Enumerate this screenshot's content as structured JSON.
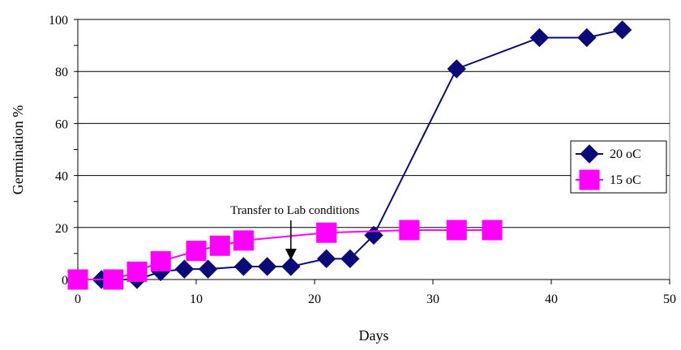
{
  "chart_data": {
    "type": "line",
    "title": "",
    "xlabel": "Days",
    "ylabel": "Germination %",
    "xlim": [
      0,
      50
    ],
    "ylim": [
      0,
      100
    ],
    "x_ticks": [
      0,
      10,
      20,
      30,
      40,
      50
    ],
    "y_ticks": [
      0,
      20,
      40,
      60,
      80,
      100
    ],
    "grid": "horizontal",
    "legend_position": "right",
    "series": [
      {
        "name": "20 oC",
        "color": "#0A0A78",
        "marker": "diamond",
        "points": [
          [
            2,
            0
          ],
          [
            5,
            0
          ],
          [
            7,
            3
          ],
          [
            9,
            4
          ],
          [
            11,
            4
          ],
          [
            14,
            5
          ],
          [
            16,
            5
          ],
          [
            18,
            5
          ],
          [
            21,
            8
          ],
          [
            23,
            8
          ],
          [
            25,
            17
          ],
          [
            32,
            81
          ],
          [
            39,
            93
          ],
          [
            43,
            93
          ],
          [
            46,
            96
          ]
        ]
      },
      {
        "name": "15 oC",
        "color": "#FF00FF",
        "marker": "square",
        "points": [
          [
            0,
            0
          ],
          [
            3,
            0
          ],
          [
            5,
            3
          ],
          [
            7,
            7
          ],
          [
            10,
            11
          ],
          [
            12,
            13
          ],
          [
            14,
            15
          ],
          [
            21,
            18
          ],
          [
            28,
            19
          ],
          [
            32,
            19
          ],
          [
            35,
            19
          ]
        ]
      }
    ],
    "annotations": [
      {
        "text": "Transfer to Lab conditions",
        "x": 18,
        "y": 5
      }
    ]
  }
}
